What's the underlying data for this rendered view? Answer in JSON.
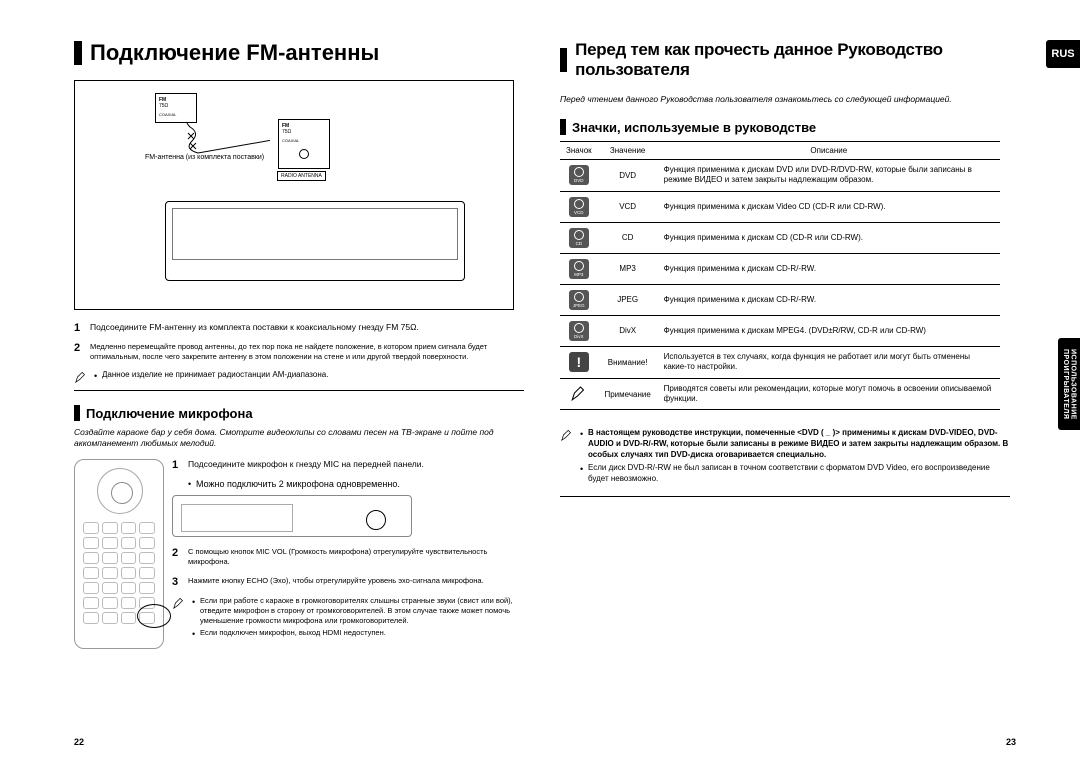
{
  "left": {
    "title": "Подключение FM-антенны",
    "diagram": {
      "fm_label": "FM\n75Ω",
      "coax_label": "COAXIAL",
      "radio_antenna": "RADIO ANTENNA",
      "antenna_caption": "FM-антенна (из комплекта поставки)"
    },
    "steps_a": [
      "Подсоедините FM-антенну из комплекта поставки к коаксиальному гнезду FM 75Ω.",
      "Медленно перемещайте провод антенны, до тех пор пока не найдете положение, в котором прием сигнала будет оптимальным, после чего закрепите антенну в этом положении на стене и или другой твердой поверхности."
    ],
    "note_a": "Данное изделие не принимает радиостанции AM-диапазона.",
    "section2": "Подключение микрофона",
    "section2_intro": "Создайте караоке бар у себя дома. Смотрите видеоклипы со словами песен на ТВ-экране и пойте под аккомпанемент любимых мелодий.",
    "mic_steps": [
      "Подсоедините микрофон к гнезду MIC на передней панели.",
      "С помощью кнопок MIC VOL (Громкость микрофона) отрегулируйте чувствительность микрофона.",
      "Нажмите кнопку ECHO (Эхо), чтобы отрегулируйте уровень эхо-сигнала микрофона."
    ],
    "mic_sub1": "Можно подключить 2 микрофона одновременно.",
    "note_b": [
      "Если при работе с караоке в громкоговорителях слышны странные звуки (свист или вой), отведите микрофон в сторону от громкоговорителей. В этом случае также может помочь уменьшение громкости микрофона или громкоговорителей.",
      "Если подключен микрофон, выход HDMI недоступен."
    ],
    "page_num": "22"
  },
  "right": {
    "title": "Перед тем как прочесть данное Руководство пользователя",
    "subtitle": "Перед чтением данного Руководства пользователя ознакомьтесь со следующей информацией.",
    "section": "Значки, используемые в руководстве",
    "table_headers": {
      "icon": "Значок",
      "meaning": "Значение",
      "desc": "Описание"
    },
    "rows": [
      {
        "icon": "DVD",
        "name": "DVD",
        "desc": "Функция применима к дискам DVD или DVD-R/DVD-RW, которые были записаны в режиме ВИДЕО и затем закрыты надлежащим образом."
      },
      {
        "icon": "VCD",
        "name": "VCD",
        "desc": "Функция применима к дискам Video CD (CD-R или CD-RW)."
      },
      {
        "icon": "CD",
        "name": "CD",
        "desc": "Функция применима к дискам CD (CD-R или CD-RW)."
      },
      {
        "icon": "MP3",
        "name": "MP3",
        "desc": "Функция применима к дискам CD-R/-RW."
      },
      {
        "icon": "JPEG",
        "name": "JPEG",
        "desc": "Функция применима к дискам CD-R/-RW."
      },
      {
        "icon": "DivX",
        "name": "DivX",
        "desc": "Функция применима к дискам MPEG4. (DVD±R/RW, CD-R или CD-RW)"
      },
      {
        "icon": "!",
        "name": "Внимание!",
        "desc": "Используется в тех случаях, когда функция не работает или могут быть отменены какие-то настройки."
      },
      {
        "icon": "",
        "name": "Примечание",
        "desc": "Приводятся советы или рекомендации, которые могут помочь в освоении описываемой функции."
      }
    ],
    "note_block": [
      "В настоящем руководстве инструкции, помеченные <DVD ( _ )> применимы к дискам DVD-VIDEO, DVD-AUDIO и DVD-R/-RW, которые были записаны в режиме ВИДЕО и затем закрыты надлежащим образом.\nВ особых случаях тип DVD-диска оговаривается специально.",
      "Если диск DVD-R/-RW не был записан в точном соответствии с форматом DVD Video, его воспроизведение будет невозможно."
    ],
    "rus": "RUS",
    "side_tab": "ИСПОЛЬЗОВАНИЕ\nПРОИГРЫВАТЕЛЯ",
    "page_num": "23"
  }
}
